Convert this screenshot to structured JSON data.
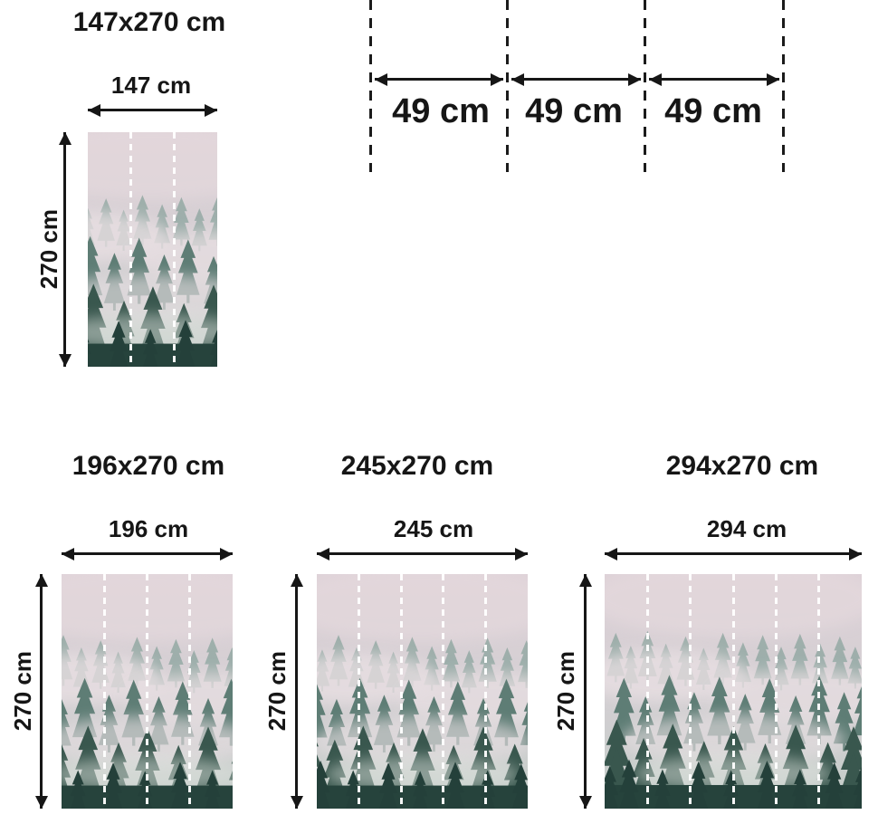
{
  "palette": {
    "ink": "#161616",
    "seam_dash_color": "#ffffff"
  },
  "panel_width_diagram": {
    "segments": [
      {
        "label": "49 cm"
      },
      {
        "label": "49 cm"
      },
      {
        "label": "49 cm"
      }
    ]
  },
  "sizes": [
    {
      "title": "147x270 cm",
      "width_label": "147 cm",
      "height_label": "270 cm",
      "panels": 3
    },
    {
      "title": "196x270 cm",
      "width_label": "196 cm",
      "height_label": "270 cm",
      "panels": 4
    },
    {
      "title": "245x270 cm",
      "width_label": "245 cm",
      "height_label": "270 cm",
      "panels": 5
    },
    {
      "title": "294x270 cm",
      "width_label": "294 cm",
      "height_label": "270 cm",
      "panels": 6
    }
  ]
}
